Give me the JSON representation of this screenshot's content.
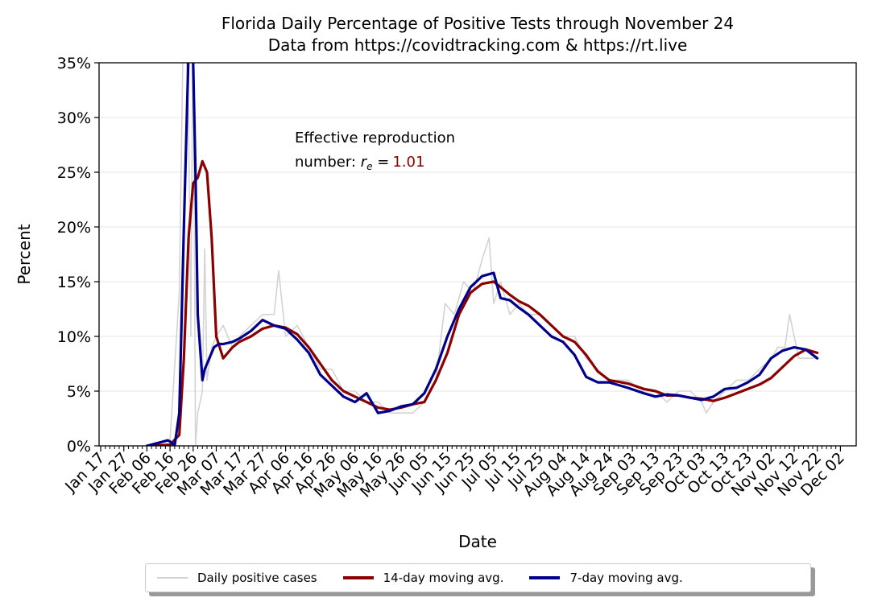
{
  "chart_data": {
    "type": "line",
    "title": "Florida Daily Percentage of Positive Tests through November 24",
    "subtitle": "Data from https://covidtracking.com & https://rt.live",
    "xlabel": "Date",
    "ylabel": "Percent",
    "ylim": [
      0,
      35
    ],
    "yticks": [
      "0%",
      "5%",
      "10%",
      "15%",
      "20%",
      "25%",
      "30%",
      "35%"
    ],
    "xticks": [
      "Jan 17",
      "Jan 27",
      "Feb 06",
      "Feb 16",
      "Feb 26",
      "Mar 07",
      "Mar 17",
      "Mar 27",
      "Apr 06",
      "Apr 16",
      "Apr 26",
      "May 06",
      "May 16",
      "May 26",
      "Jun 05",
      "Jun 15",
      "Jun 25",
      "Jul 05",
      "Jul 15",
      "Jul 25",
      "Aug 04",
      "Aug 14",
      "Aug 24",
      "Sep 03",
      "Sep 13",
      "Sep 23",
      "Oct 03",
      "Oct 13",
      "Oct 23",
      "Nov 02",
      "Nov 12",
      "Nov 22",
      "Dec 02"
    ],
    "grid": "horizontal",
    "legend_placement": "bottom",
    "annotation": {
      "line1": "Effective reproduction",
      "line2_prefix": "number: ",
      "symbol": "r",
      "subscript": "e",
      "equals": " =",
      "value": "1.01",
      "value_color": "#8b0000"
    },
    "series": [
      {
        "name": "Daily positive cases",
        "color": "#d3d3d3",
        "x": [
          "Feb 06",
          "Feb 16",
          "Feb 20",
          "Feb 22",
          "Feb 24",
          "Feb 25",
          "Feb 26",
          "Feb 27",
          "Feb 28",
          "Mar 01",
          "Mar 02",
          "Mar 03",
          "Mar 05",
          "Mar 07",
          "Mar 10",
          "Mar 14",
          "Mar 17",
          "Mar 22",
          "Mar 27",
          "Apr 01",
          "Apr 03",
          "Apr 06",
          "Apr 11",
          "Apr 16",
          "Apr 21",
          "Apr 26",
          "May 01",
          "May 06",
          "May 11",
          "May 16",
          "May 21",
          "May 26",
          "May 31",
          "Jun 05",
          "Jun 10",
          "Jun 14",
          "Jun 18",
          "Jun 22",
          "Jun 26",
          "Jun 30",
          "Jul 03",
          "Jul 05",
          "Jul 08",
          "Jul 12",
          "Jul 16",
          "Jul 20",
          "Jul 25",
          "Jul 30",
          "Aug 04",
          "Aug 09",
          "Aug 14",
          "Aug 19",
          "Aug 24",
          "Sep 01",
          "Sep 08",
          "Sep 13",
          "Sep 18",
          "Sep 23",
          "Sep 28",
          "Oct 03",
          "Oct 05",
          "Oct 08",
          "Oct 13",
          "Oct 18",
          "Oct 23",
          "Oct 28",
          "Nov 02",
          "Nov 05",
          "Nov 08",
          "Nov 10",
          "Nov 14",
          "Nov 18",
          "Nov 22"
        ],
        "y": [
          0,
          0.5,
          14,
          42,
          30,
          10,
          42,
          0,
          3,
          5,
          18,
          6,
          9,
          10,
          11,
          9,
          10,
          11,
          12,
          12,
          16,
          10,
          11,
          9,
          7,
          7,
          5,
          5,
          4,
          4,
          3,
          3,
          3,
          4,
          6,
          13,
          12,
          15,
          14,
          17,
          19,
          13,
          15,
          12,
          13,
          12,
          12,
          11,
          10,
          10,
          8,
          7,
          6,
          6,
          5,
          5,
          4,
          5,
          5,
          4,
          3,
          4,
          5,
          6,
          6,
          7,
          8,
          9,
          9,
          12,
          8,
          8,
          8
        ]
      },
      {
        "name": "14-day moving avg.",
        "color": "#8b0000",
        "x": [
          "Feb 06",
          "Feb 16",
          "Feb 20",
          "Feb 22",
          "Feb 24",
          "Feb 26",
          "Feb 28",
          "Mar 01",
          "Mar 03",
          "Mar 05",
          "Mar 07",
          "Mar 10",
          "Mar 14",
          "Mar 17",
          "Mar 22",
          "Mar 27",
          "Apr 01",
          "Apr 06",
          "Apr 11",
          "Apr 16",
          "Apr 21",
          "Apr 26",
          "May 01",
          "May 06",
          "May 11",
          "May 16",
          "May 21",
          "May 26",
          "May 31",
          "Jun 05",
          "Jun 10",
          "Jun 15",
          "Jun 20",
          "Jun 25",
          "Jun 30",
          "Jul 05",
          "Jul 08",
          "Jul 12",
          "Jul 16",
          "Jul 20",
          "Jul 25",
          "Jul 30",
          "Aug 04",
          "Aug 09",
          "Aug 14",
          "Aug 19",
          "Aug 24",
          "Sep 01",
          "Sep 08",
          "Sep 13",
          "Sep 18",
          "Sep 23",
          "Sep 28",
          "Oct 03",
          "Oct 08",
          "Oct 13",
          "Oct 18",
          "Oct 23",
          "Oct 28",
          "Nov 02",
          "Nov 07",
          "Nov 12",
          "Nov 17",
          "Nov 22"
        ],
        "y": [
          0,
          0.1,
          1,
          8,
          19,
          24,
          24.5,
          26,
          25,
          19,
          10,
          8,
          9,
          9.5,
          10,
          10.7,
          11,
          10.8,
          10.2,
          9,
          7.5,
          6,
          5,
          4.5,
          4,
          3.5,
          3.3,
          3.5,
          3.8,
          4,
          6,
          8.5,
          12,
          14,
          14.8,
          15,
          14.5,
          13.8,
          13.2,
          12.8,
          12,
          11,
          10,
          9.5,
          8.3,
          6.8,
          6,
          5.7,
          5.2,
          5,
          4.6,
          4.6,
          4.4,
          4.3,
          4.1,
          4.4,
          4.8,
          5.2,
          5.6,
          6.2,
          7.2,
          8.2,
          8.8,
          8.5
        ]
      },
      {
        "name": "7-day moving avg.",
        "color": "#00008b",
        "x": [
          "Feb 06",
          "Feb 15",
          "Feb 16",
          "Feb 18",
          "Feb 20",
          "Feb 22",
          "Feb 24",
          "Feb 25",
          "Feb 26",
          "Feb 27",
          "Feb 28",
          "Mar 01",
          "Mar 02",
          "Mar 04",
          "Mar 06",
          "Mar 08",
          "Mar 10",
          "Mar 14",
          "Mar 17",
          "Mar 22",
          "Mar 27",
          "Apr 01",
          "Apr 06",
          "Apr 11",
          "Apr 16",
          "Apr 21",
          "Apr 26",
          "May 01",
          "May 06",
          "May 11",
          "May 16",
          "May 21",
          "May 26",
          "May 31",
          "Jun 05",
          "Jun 10",
          "Jun 15",
          "Jun 20",
          "Jun 25",
          "Jun 30",
          "Jul 05",
          "Jul 08",
          "Jul 12",
          "Jul 16",
          "Jul 20",
          "Jul 25",
          "Jul 30",
          "Aug 04",
          "Aug 09",
          "Aug 14",
          "Aug 19",
          "Aug 24",
          "Sep 01",
          "Sep 08",
          "Sep 13",
          "Sep 18",
          "Sep 23",
          "Sep 28",
          "Oct 03",
          "Oct 08",
          "Oct 13",
          "Oct 18",
          "Oct 23",
          "Oct 28",
          "Nov 02",
          "Nov 07",
          "Nov 12",
          "Nov 17",
          "Nov 22"
        ],
        "y": [
          0,
          0.5,
          0.4,
          0,
          3,
          20,
          36,
          37,
          35,
          25,
          12,
          6,
          7,
          8,
          9,
          9.3,
          9.3,
          9.5,
          9.8,
          10.5,
          11.5,
          11,
          10.7,
          9.7,
          8.5,
          6.5,
          5.5,
          4.5,
          4,
          4.8,
          3,
          3.2,
          3.6,
          3.8,
          4.8,
          7,
          10,
          12.5,
          14.5,
          15.5,
          15.8,
          13.5,
          13.3,
          12.6,
          12,
          11,
          10,
          9.5,
          8.3,
          6.3,
          5.8,
          5.8,
          5.3,
          4.8,
          4.5,
          4.7,
          4.6,
          4.4,
          4.2,
          4.5,
          5.2,
          5.3,
          5.8,
          6.5,
          8,
          8.7,
          9,
          8.8,
          8
        ]
      }
    ]
  }
}
